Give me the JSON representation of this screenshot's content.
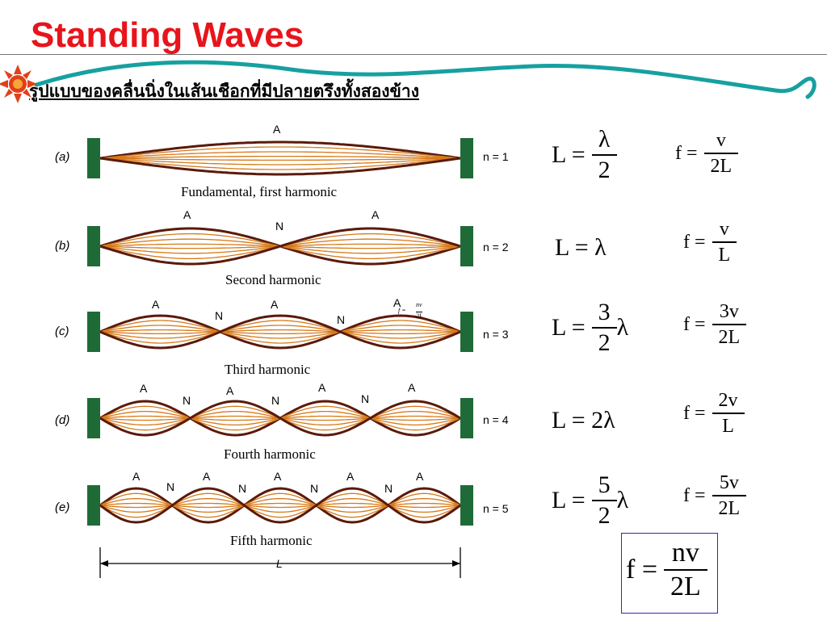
{
  "title": "Standing Waves",
  "subtitle": "รูปแบบของคลื่นนิ่งในเส้นเชือกที่มีปลายตรึงทั้งสองข้าง",
  "colors": {
    "title": "#e8141c",
    "wave_dark": "#5a1a0a",
    "wave_light": "#d67a1a",
    "post": "#1f6b37",
    "deco_line": "#17a0a0",
    "sun": "#e0401a",
    "box": "#2b2bb5"
  },
  "harmonics": [
    {
      "label": "(a)",
      "n_label": "n = 1",
      "caption": "Fundamental, first harmonic"
    },
    {
      "label": "(b)",
      "n_label": "n = 2",
      "caption": "Second harmonic"
    },
    {
      "label": "(c)",
      "n_label": "n = 3",
      "caption": "Third harmonic"
    },
    {
      "label": "(d)",
      "n_label": "n = 4",
      "caption": "Fourth harmonic"
    },
    {
      "label": "(e)",
      "n_label": "n = 5",
      "caption": "Fifth harmonic"
    }
  ],
  "marks": {
    "antinode": "A",
    "node": "N",
    "length": "L"
  },
  "inset_formula": {
    "lhs": "f =",
    "num": "nv",
    "den": "2L"
  },
  "equations": [
    {
      "length": {
        "lhs": "L =",
        "num": "λ",
        "den": "2",
        "tail": ""
      },
      "freq": {
        "lhs": "f =",
        "num": "v",
        "den": "2L"
      }
    },
    {
      "length": {
        "text": "L = λ"
      },
      "freq": {
        "lhs": "f =",
        "num": "v",
        "den": "L"
      }
    },
    {
      "length": {
        "lhs": "L =",
        "num": "3",
        "den": "2",
        "tail": "λ"
      },
      "freq": {
        "lhs": "f =",
        "num": "3v",
        "den": "2L"
      }
    },
    {
      "length": {
        "text": "L = 2λ"
      },
      "freq": {
        "lhs": "f =",
        "num": "2v",
        "den": "L"
      }
    },
    {
      "length": {
        "lhs": "L =",
        "num": "5",
        "den": "2",
        "tail": "λ"
      },
      "freq": {
        "lhs": "f =",
        "num": "5v",
        "den": "2L"
      }
    }
  ],
  "general": {
    "lhs": "f =",
    "num": "nv",
    "den": "2L"
  }
}
